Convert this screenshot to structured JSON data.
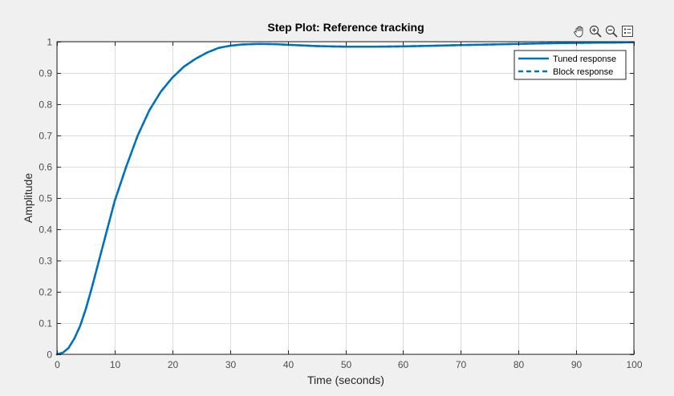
{
  "toolbar": {
    "icons": [
      "pan-icon",
      "zoom-in-icon",
      "zoom-out-icon",
      "legend-toggle-icon"
    ]
  },
  "colors": {
    "background": "#f0f0f0",
    "axes": "#ffffff",
    "grid": "#dcdcdc",
    "axis_line": "#262626",
    "series": "#0072bd"
  },
  "chart_data": {
    "type": "line",
    "title": "Step Plot: Reference tracking",
    "xlabel": "Time (seconds)",
    "ylabel": "Amplitude",
    "xlim": [
      0,
      100
    ],
    "ylim": [
      0,
      1
    ],
    "xticks": [
      0,
      10,
      20,
      30,
      40,
      50,
      60,
      70,
      80,
      90,
      100
    ],
    "yticks": [
      0,
      0.1,
      0.2,
      0.3,
      0.4,
      0.5,
      0.6,
      0.7,
      0.8,
      0.9,
      1
    ],
    "grid": true,
    "legend_position": "top-right",
    "series": [
      {
        "name": "Tuned response",
        "style": "solid",
        "x": [
          0,
          1,
          2,
          3,
          4,
          5,
          6,
          7,
          8,
          9,
          10,
          12,
          14,
          16,
          18,
          20,
          22,
          24,
          26,
          28,
          30,
          32,
          35,
          38,
          40,
          45,
          50,
          55,
          60,
          65,
          70,
          75,
          80,
          85,
          90,
          95,
          100
        ],
        "y": [
          0,
          0.005,
          0.02,
          0.05,
          0.09,
          0.145,
          0.21,
          0.28,
          0.35,
          0.42,
          0.49,
          0.6,
          0.7,
          0.78,
          0.84,
          0.885,
          0.92,
          0.945,
          0.965,
          0.98,
          0.987,
          0.991,
          0.993,
          0.992,
          0.99,
          0.986,
          0.984,
          0.984,
          0.985,
          0.987,
          0.989,
          0.991,
          0.993,
          0.995,
          0.996,
          0.997,
          0.998
        ]
      },
      {
        "name": "Block response",
        "style": "dashed",
        "x": [
          0,
          1,
          2,
          3,
          4,
          5,
          6,
          7,
          8,
          9,
          10,
          12,
          14,
          16,
          18,
          20,
          22,
          24,
          26,
          28,
          30,
          32,
          35,
          38,
          40,
          45,
          50,
          55,
          60,
          65,
          70,
          75,
          80,
          85,
          90,
          95,
          100
        ],
        "y": [
          0,
          0.005,
          0.02,
          0.05,
          0.09,
          0.145,
          0.21,
          0.28,
          0.35,
          0.42,
          0.49,
          0.6,
          0.7,
          0.78,
          0.84,
          0.885,
          0.92,
          0.945,
          0.965,
          0.98,
          0.987,
          0.991,
          0.993,
          0.992,
          0.99,
          0.986,
          0.984,
          0.984,
          0.985,
          0.987,
          0.989,
          0.991,
          0.993,
          0.995,
          0.996,
          0.997,
          0.998
        ]
      }
    ]
  }
}
